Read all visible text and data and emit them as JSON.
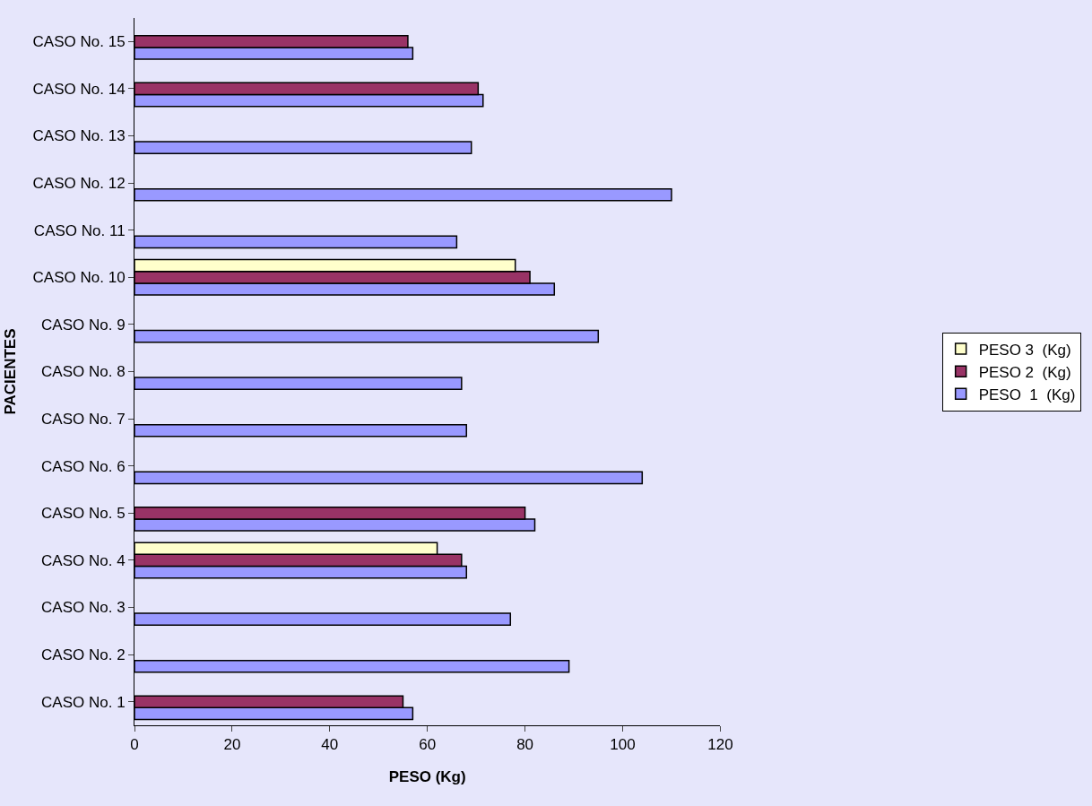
{
  "chart_data": {
    "type": "bar",
    "orientation": "horizontal",
    "xlabel": "PESO (Kg)",
    "ylabel": "PACIENTES",
    "categories": [
      "CASO No. 15",
      "CASO No. 14",
      "CASO No. 13",
      "CASO No. 12",
      "CASO No. 11",
      "CASO No. 10",
      "CASO No. 9",
      "CASO No. 8",
      "CASO No. 7",
      "CASO No. 6",
      "CASO No. 5",
      "CASO No. 4",
      "CASO No. 3",
      "CASO No. 2",
      "CASO No. 1"
    ],
    "series": [
      {
        "name": "PESO  1  (Kg)",
        "color": "#9999ff",
        "values": [
          57,
          71.4,
          69,
          110,
          66,
          86,
          95,
          67,
          68,
          104,
          82,
          68,
          77,
          89,
          57
        ]
      },
      {
        "name": "PESO 2  (Kg)",
        "color": "#993366",
        "values": [
          56,
          70.4,
          null,
          null,
          null,
          81,
          null,
          null,
          null,
          null,
          80,
          67,
          null,
          null,
          55
        ]
      },
      {
        "name": "PESO 3  (Kg)",
        "color": "#ffffcc",
        "values": [
          null,
          null,
          null,
          null,
          null,
          78,
          null,
          null,
          null,
          null,
          null,
          62,
          null,
          null,
          null
        ]
      }
    ],
    "xlim": [
      0,
      120
    ],
    "xticks": [
      0,
      20,
      40,
      60,
      80,
      100,
      120
    ],
    "grid": false,
    "legend": "right"
  }
}
